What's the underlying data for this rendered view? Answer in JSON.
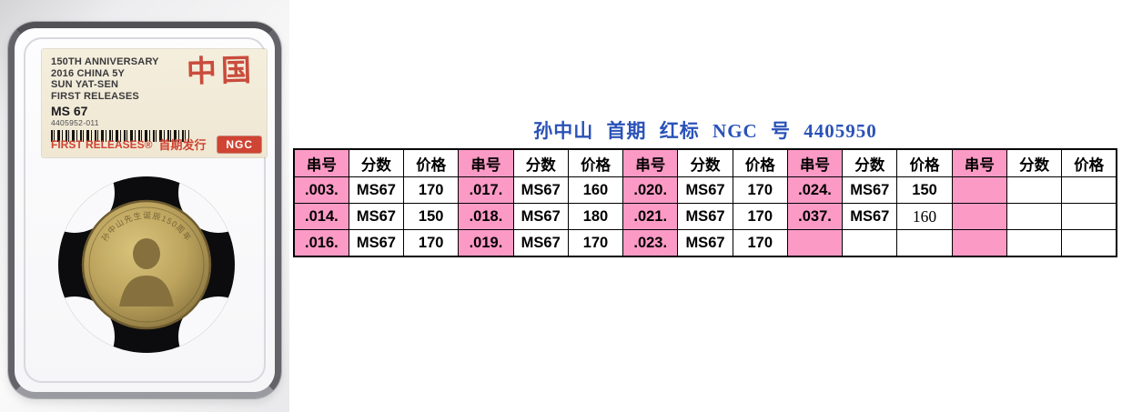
{
  "photo": {
    "label": {
      "lines": [
        "150TH ANNIVERSARY",
        "2016 CHINA 5Y",
        "SUN YAT-SEN",
        "FIRST RELEASES"
      ],
      "grade": "MS 67",
      "cert": "4405952-011",
      "stamp": "中国",
      "footer_brand": "FIRST RELEASES®",
      "footer_cn": "首期发行",
      "logo": "NGC"
    },
    "coin_inscription": "孙中山先生诞辰150周年"
  },
  "listing": {
    "title": "孙中山 首期 红标 NGC 号 4405950"
  },
  "table": {
    "column_headers": [
      "串号",
      "分数",
      "价格"
    ],
    "groups": 5,
    "rows": [
      [
        ".003.",
        "MS67",
        "170",
        ".017.",
        "MS67",
        "160",
        ".020.",
        "MS67",
        "170",
        ".024.",
        "MS67",
        "150",
        "",
        "",
        ""
      ],
      [
        ".014.",
        "MS67",
        "150",
        ".018.",
        "MS67",
        "180",
        ".021.",
        "MS67",
        "170",
        ".037.",
        "MS67",
        "160",
        "",
        "",
        ""
      ],
      [
        ".016.",
        "MS67",
        "170",
        ".019.",
        "MS67",
        "170",
        ".023.",
        "MS67",
        "170",
        "",
        "",
        "",
        "",
        "",
        ""
      ]
    ],
    "serif_cells": [
      [
        1,
        11
      ]
    ]
  },
  "colors": {
    "serial_pink": "#fc9ac6",
    "title_blue": "#2a52b8",
    "label_red": "#cf4433",
    "stamp_red": "#c53b2c"
  }
}
